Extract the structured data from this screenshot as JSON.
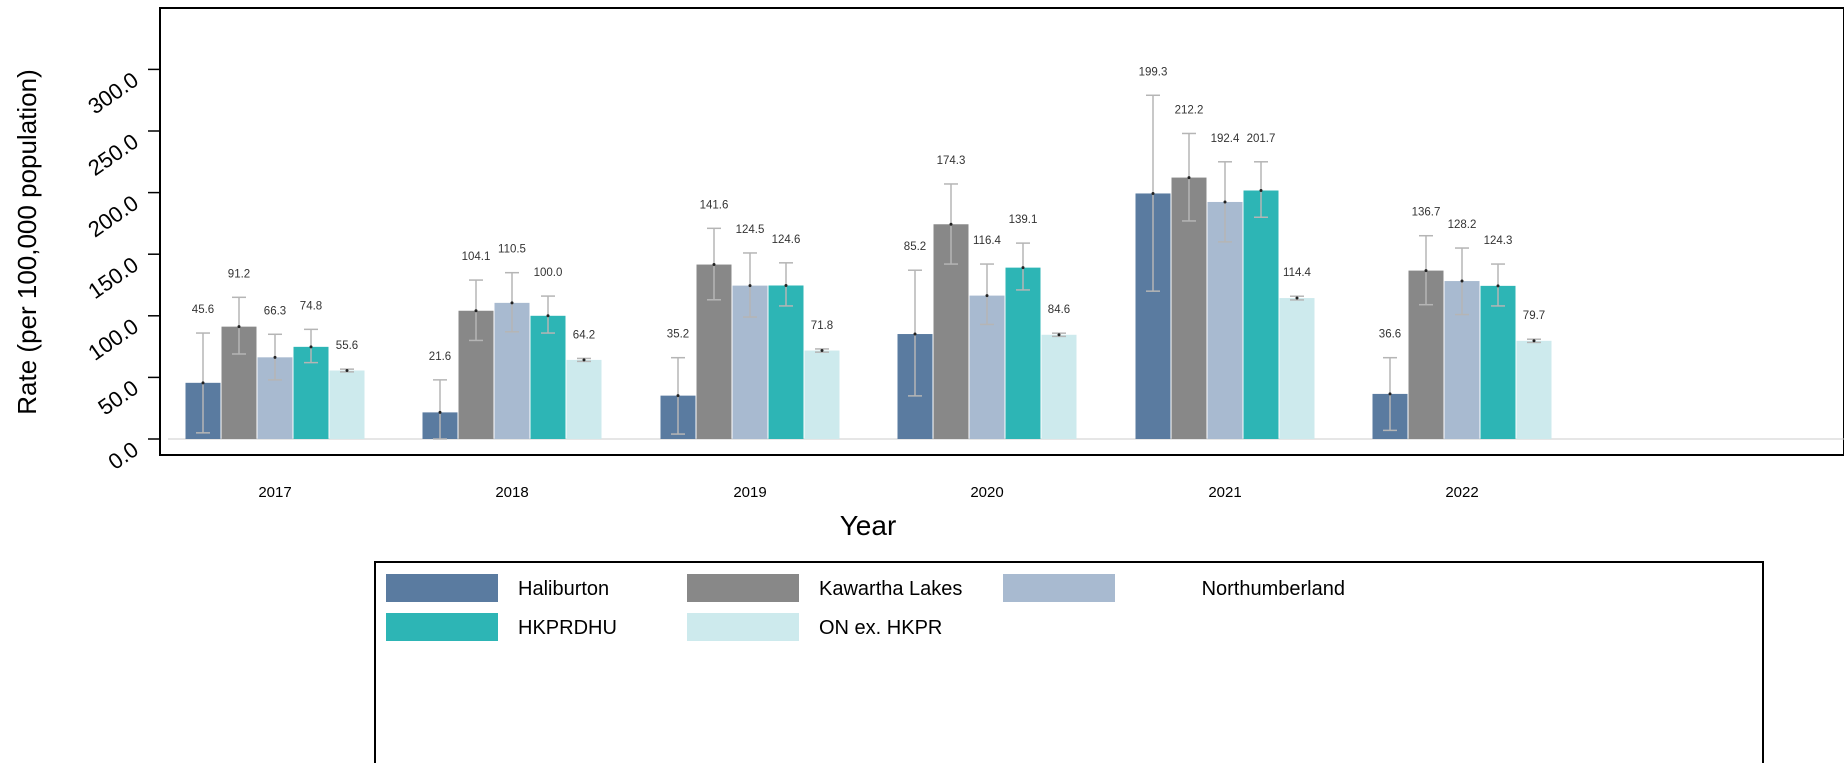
{
  "chart_data": {
    "type": "bar",
    "xlabel": "Year",
    "ylabel": "Rate (per 100,000 population)",
    "ylim": [
      0,
      300
    ],
    "yticks": [
      "0.0",
      "50.0",
      "100.0",
      "150.0",
      "200.0",
      "250.0",
      "300.0"
    ],
    "categories": [
      "2017",
      "2018",
      "2019",
      "2020",
      "2021",
      "2022"
    ],
    "legend_position": "bottom",
    "grid": false,
    "series": [
      {
        "name": "Haliburton",
        "color": "#5a7ba0",
        "values": [
          45.6,
          21.6,
          35.2,
          85.2,
          199.3,
          36.6
        ],
        "labels": [
          "45.6",
          "21.6",
          "35.2",
          "85.2",
          "199.3",
          "36.6"
        ],
        "ci_low": [
          5,
          0,
          4,
          35,
          120,
          7
        ],
        "ci_high": [
          86,
          48,
          66,
          137,
          279,
          66
        ]
      },
      {
        "name": "Kawartha Lakes",
        "color": "#888888",
        "values": [
          91.2,
          104.1,
          141.6,
          174.3,
          212.2,
          136.7
        ],
        "labels": [
          "91.2",
          "104.1",
          "141.6",
          "174.3",
          "212.2",
          "136.7"
        ],
        "ci_low": [
          69,
          80,
          113,
          142,
          177,
          109
        ],
        "ci_high": [
          115,
          129,
          171,
          207,
          248,
          165
        ]
      },
      {
        "name": "Northumberland",
        "color": "#a8bad0",
        "values": [
          66.3,
          110.5,
          124.5,
          116.4,
          192.4,
          128.2
        ],
        "labels": [
          "66.3",
          "110.5",
          "124.5",
          "116.4",
          "192.4",
          "128.2"
        ],
        "ci_low": [
          48,
          87,
          99,
          93,
          160,
          101
        ],
        "ci_high": [
          85,
          135,
          151,
          142,
          225,
          155
        ]
      },
      {
        "name": "HKPRDHU",
        "color": "#2db5b5",
        "values": [
          74.8,
          100.0,
          124.6,
          139.1,
          201.7,
          124.3
        ],
        "labels": [
          "74.8",
          "100.0",
          "124.6",
          "139.1",
          "201.7",
          "124.3"
        ],
        "ci_low": [
          62,
          86,
          108,
          121,
          180,
          108
        ],
        "ci_high": [
          89,
          116,
          143,
          159,
          225,
          142
        ]
      },
      {
        "name": "ON ex. HKPR",
        "color": "#cdeaed",
        "values": [
          55.6,
          64.2,
          71.8,
          84.6,
          114.4,
          79.7
        ],
        "labels": [
          "55.6",
          "64.2",
          "71.8",
          "84.6",
          "114.4",
          "79.7"
        ],
        "ci_low": [
          54.5,
          63,
          70.5,
          83.3,
          112.9,
          78.4
        ],
        "ci_high": [
          56.7,
          65.4,
          73.1,
          85.9,
          115.9,
          81
        ]
      }
    ]
  }
}
